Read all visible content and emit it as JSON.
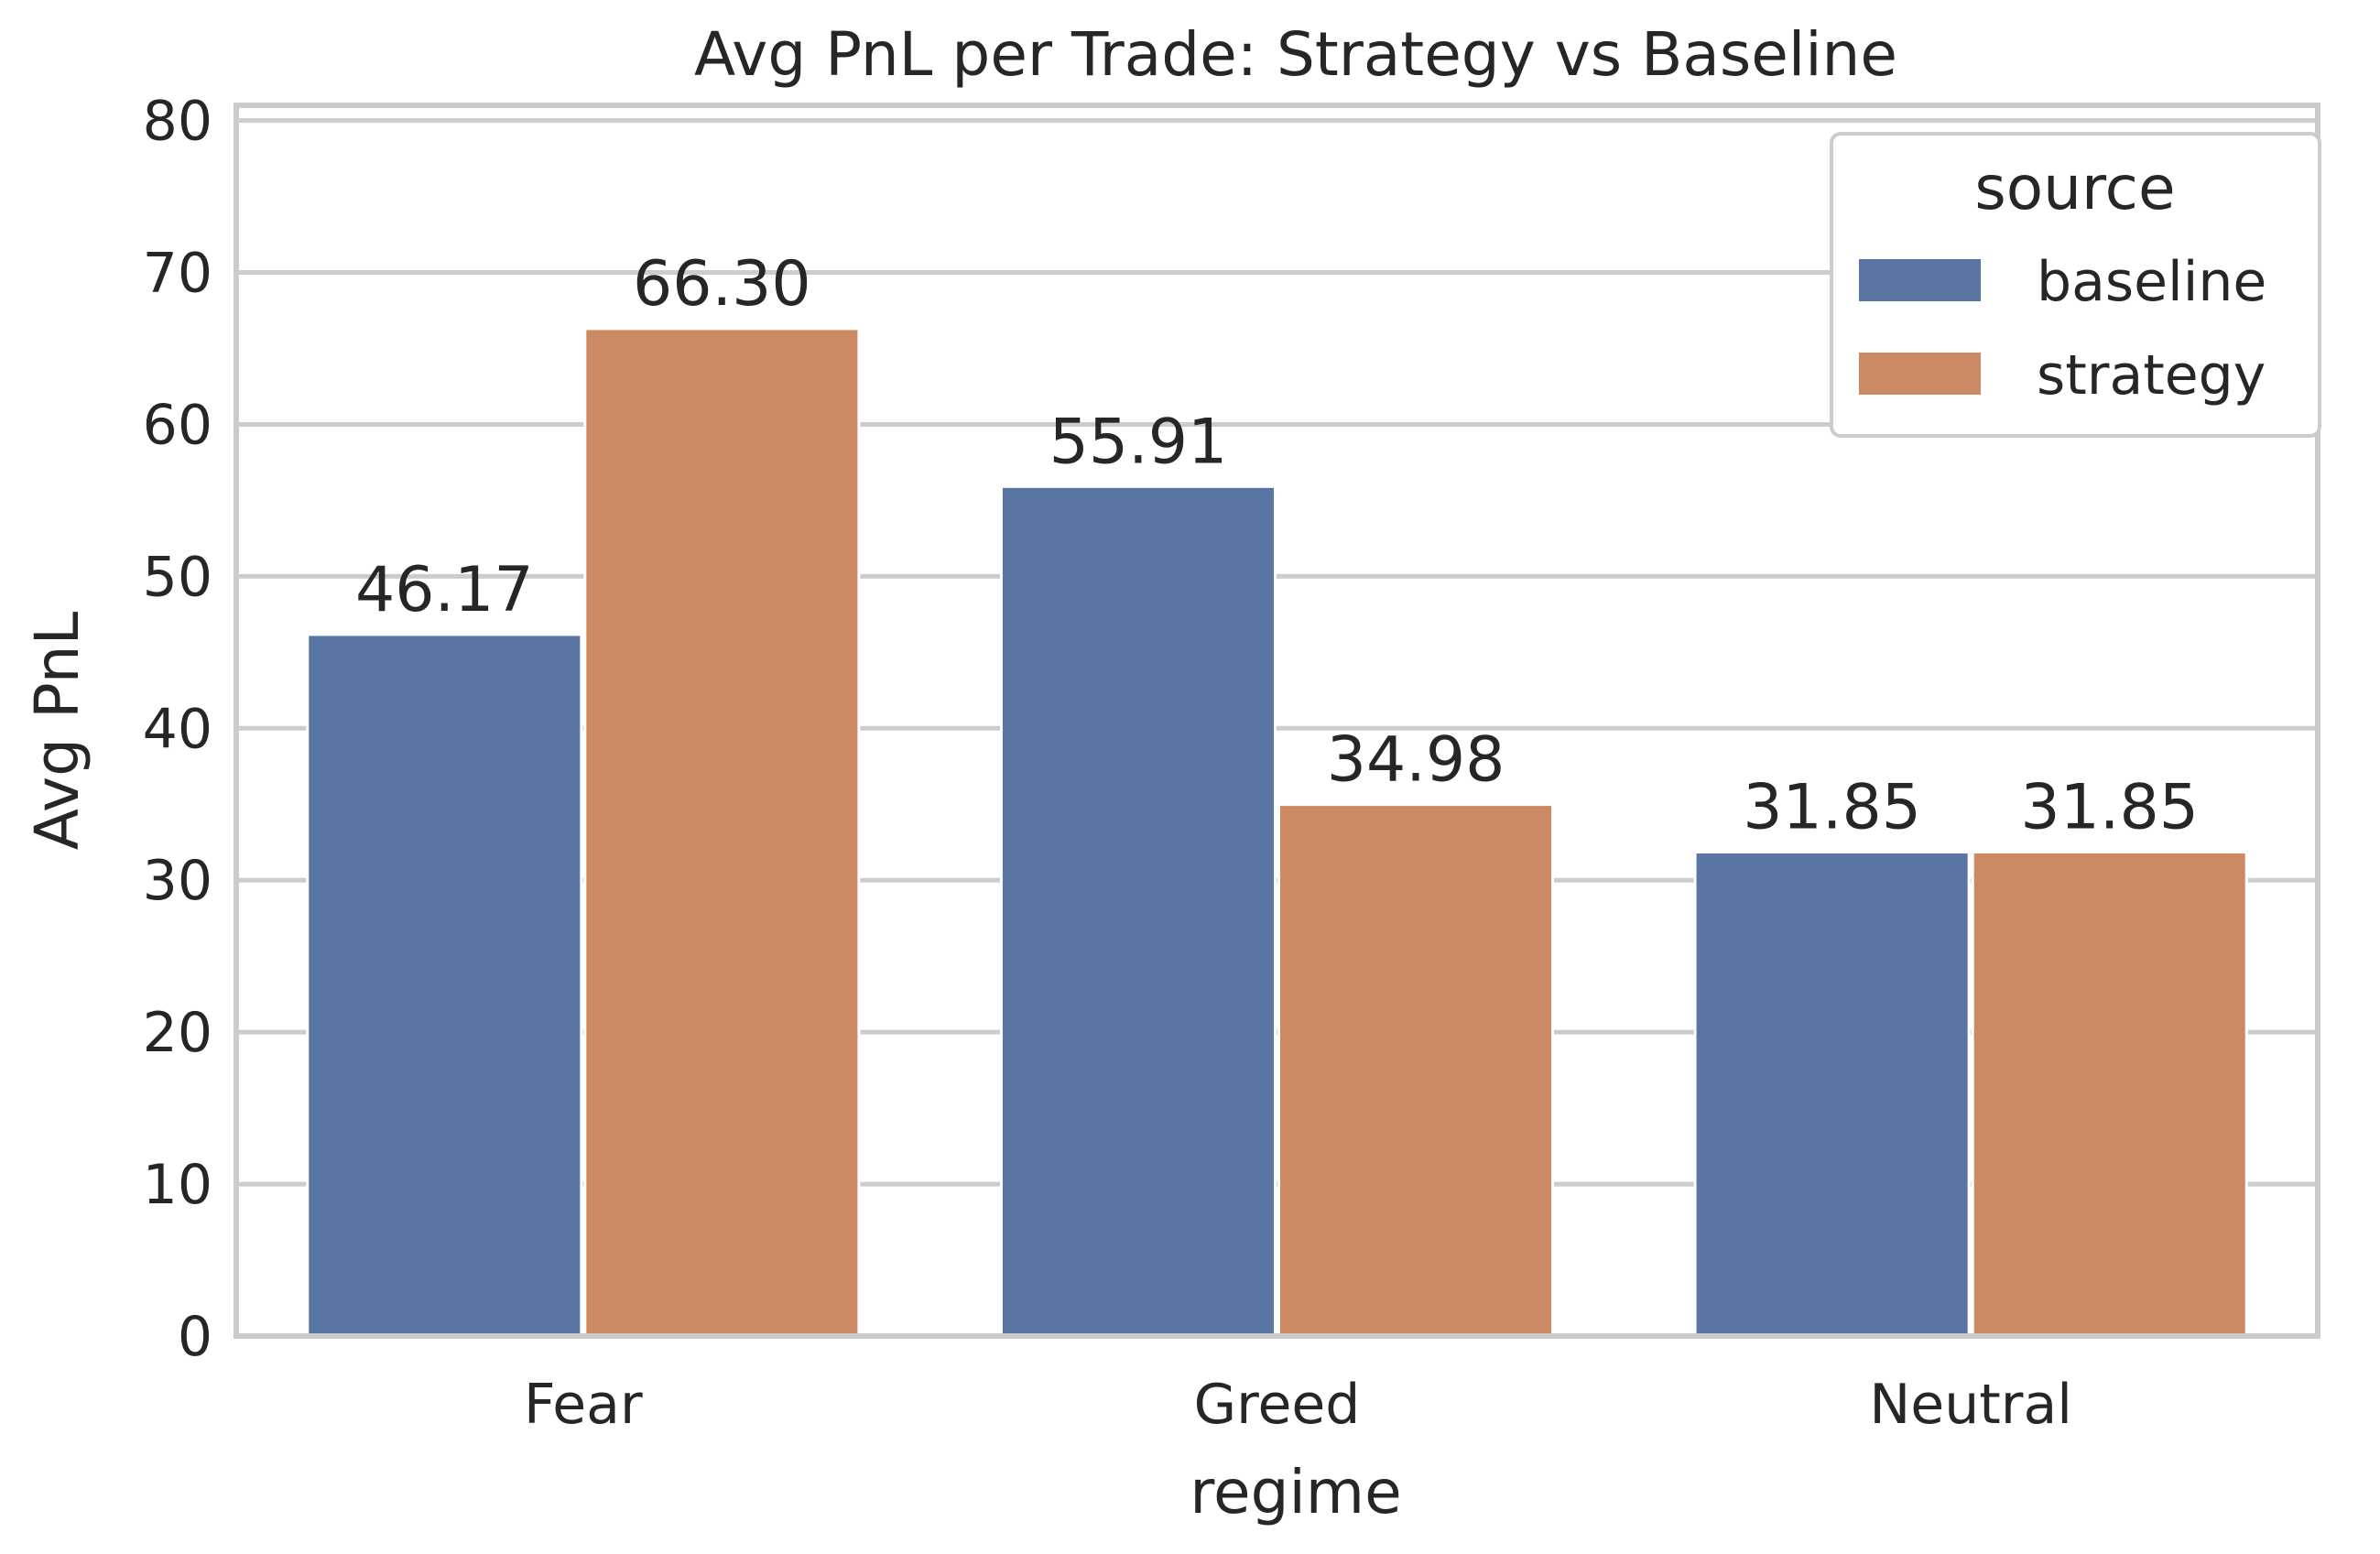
{
  "chart_data": {
    "type": "bar",
    "title": "Avg PnL per Trade: Strategy vs Baseline",
    "xlabel": "regime",
    "ylabel": "Avg PnL",
    "categories": [
      "Fear",
      "Greed",
      "Neutral"
    ],
    "series": [
      {
        "name": "baseline",
        "values": [
          46.17,
          55.91,
          31.85
        ],
        "labels": [
          "46.17",
          "55.91",
          "31.85"
        ],
        "color": "#5975a4"
      },
      {
        "name": "strategy",
        "values": [
          66.3,
          34.98,
          31.85
        ],
        "labels": [
          "66.30",
          "34.98",
          "31.85"
        ],
        "color": "#cc8963"
      }
    ],
    "ylim": [
      0,
      81
    ],
    "yticks": [
      0,
      10,
      20,
      30,
      40,
      50,
      60,
      70,
      80
    ],
    "ytick_labels": [
      "0",
      "10",
      "20",
      "30",
      "40",
      "50",
      "60",
      "70",
      "80"
    ],
    "grid": true,
    "legend": {
      "title": "source",
      "placement": "top-right"
    }
  }
}
